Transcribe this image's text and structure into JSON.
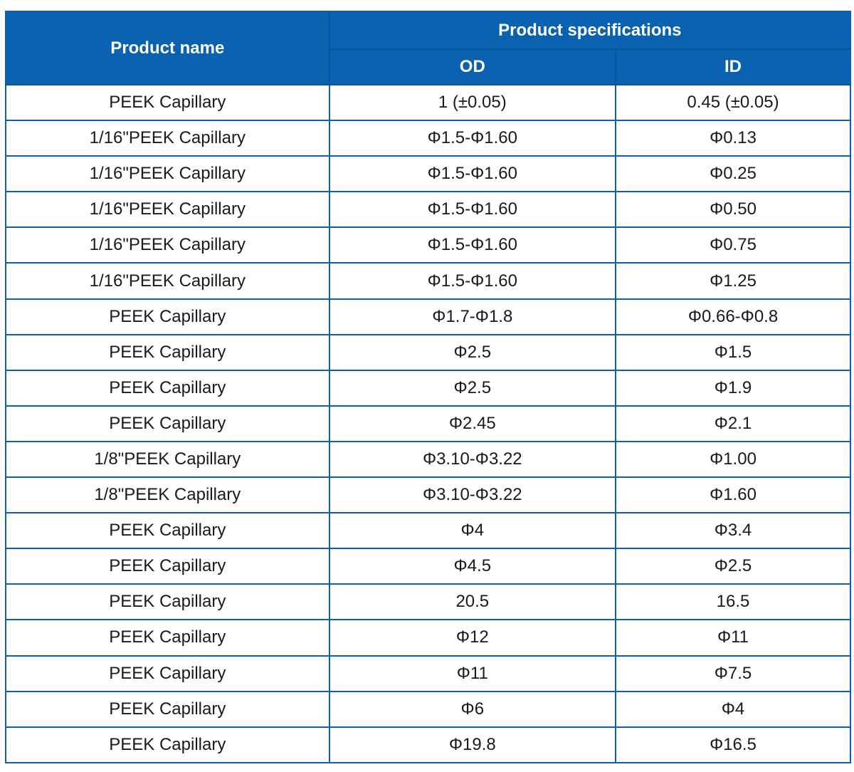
{
  "table": {
    "colors": {
      "header_bg": "#0961AF",
      "header_divider": "#0A53A0",
      "border": "#0C60B4",
      "header_text": "#FFFFFF",
      "body_text": "#1A1A1A",
      "page_bg": "#FFFFFF"
    },
    "header": {
      "product_name": "Product name",
      "product_specifications": "Product specifications",
      "od": "OD",
      "id": "ID"
    },
    "rows": [
      {
        "name": "PEEK Capillary",
        "od": "1 (±0.05)",
        "id": "0.45 (±0.05)"
      },
      {
        "name": "1/16\"PEEK Capillary",
        "od": "Φ1.5-Φ1.60",
        "id": "Φ0.13"
      },
      {
        "name": "1/16\"PEEK Capillary",
        "od": "Φ1.5-Φ1.60",
        "id": "Φ0.25"
      },
      {
        "name": "1/16\"PEEK Capillary",
        "od": "Φ1.5-Φ1.60",
        "id": "Φ0.50"
      },
      {
        "name": "1/16\"PEEK Capillary",
        "od": "Φ1.5-Φ1.60",
        "id": "Φ0.75"
      },
      {
        "name": "1/16\"PEEK Capillary",
        "od": "Φ1.5-Φ1.60",
        "id": "Φ1.25"
      },
      {
        "name": "PEEK Capillary",
        "od": "Φ1.7-Φ1.8",
        "id": "Φ0.66-Φ0.8"
      },
      {
        "name": "PEEK Capillary",
        "od": "Φ2.5",
        "id": "Φ1.5"
      },
      {
        "name": "PEEK Capillary",
        "od": "Φ2.5",
        "id": "Φ1.9"
      },
      {
        "name": "PEEK Capillary",
        "od": "Φ2.45",
        "id": "Φ2.1"
      },
      {
        "name": "1/8\"PEEK Capillary",
        "od": "Φ3.10-Φ3.22",
        "id": "Φ1.00"
      },
      {
        "name": "1/8\"PEEK Capillary",
        "od": "Φ3.10-Φ3.22",
        "id": "Φ1.60"
      },
      {
        "name": "PEEK Capillary",
        "od": "Φ4",
        "id": "Φ3.4"
      },
      {
        "name": "PEEK Capillary",
        "od": "Φ4.5",
        "id": "Φ2.5"
      },
      {
        "name": "PEEK Capillary",
        "od": "20.5",
        "id": "16.5"
      },
      {
        "name": "PEEK Capillary",
        "od": "Φ12",
        "id": "Φ11"
      },
      {
        "name": "PEEK Capillary",
        "od": "Φ11",
        "id": "Φ7.5"
      },
      {
        "name": "PEEK Capillary",
        "od": "Φ6",
        "id": "Φ4"
      },
      {
        "name": "PEEK Capillary",
        "od": "Φ19.8",
        "id": "Φ16.5"
      }
    ]
  }
}
